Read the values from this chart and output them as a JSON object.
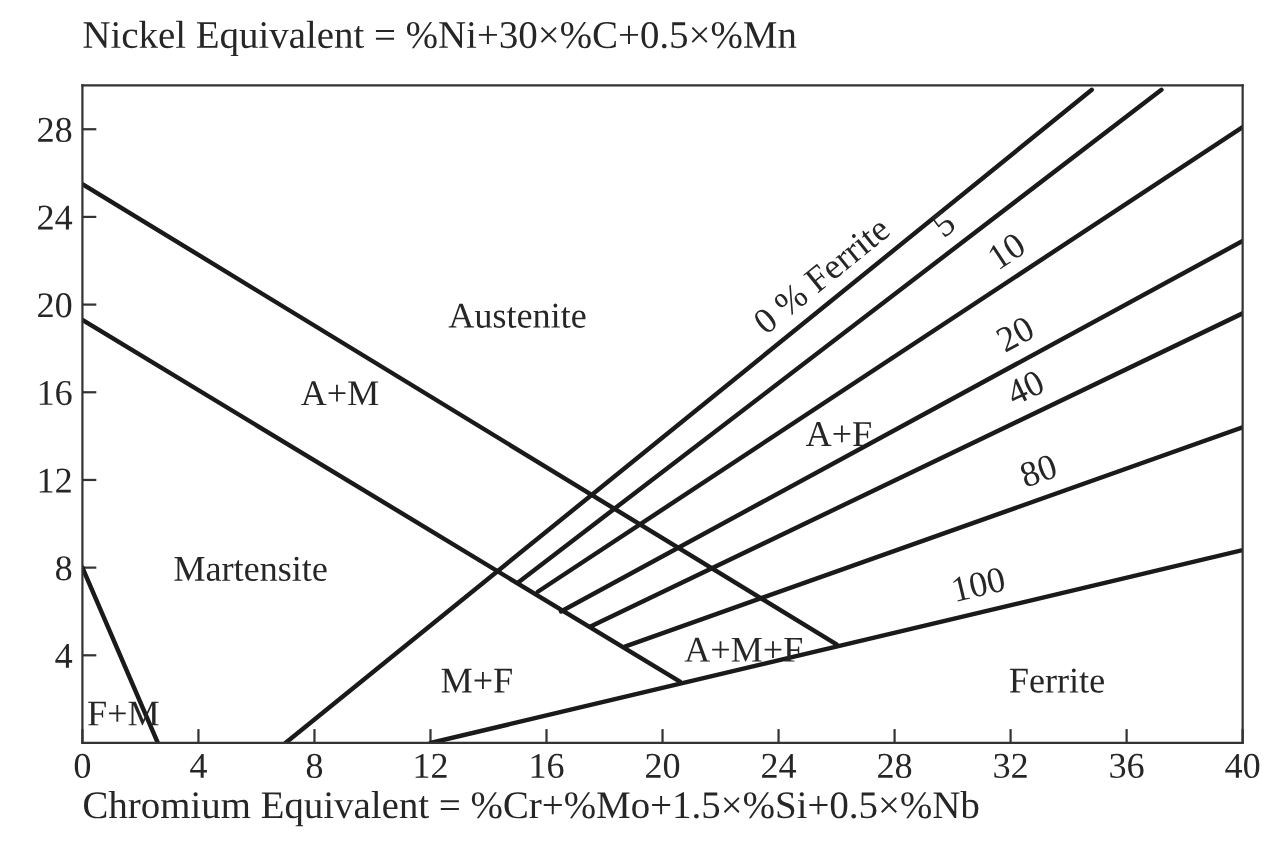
{
  "chart_data": {
    "type": "line",
    "xlabel": "Chromium Equivalent = %Cr+%Mo+1.5×%Si+0.5×%Nb",
    "ylabel": "Nickel Equivalent = %Ni+30×%C+0.5×%Mn",
    "xlim": [
      0,
      40
    ],
    "ylim": [
      0,
      30
    ],
    "xticks": [
      0,
      4,
      8,
      12,
      16,
      20,
      24,
      28,
      32,
      36,
      40
    ],
    "yticks": [
      4,
      8,
      12,
      16,
      20,
      24,
      28
    ],
    "grid": false,
    "legend": false,
    "marker": "none",
    "line_style": "solid",
    "series": [
      {
        "color": "#1a1a1a",
        "x": [
          0,
          26.0
        ],
        "values": [
          25.5,
          4.5
        ]
      },
      {
        "color": "#1a1a1a",
        "x": [
          0,
          20.6
        ],
        "values": [
          19.3,
          2.8
        ]
      },
      {
        "color": "#1a1a1a",
        "x": [
          0,
          2.6
        ],
        "values": [
          8.0,
          0
        ]
      },
      {
        "name": "0 % Ferrite",
        "color": "#1a1a1a",
        "x": [
          7.0,
          34.8
        ],
        "values": [
          0,
          29.8
        ]
      },
      {
        "name": "5",
        "color": "#1a1a1a",
        "x": [
          15.0,
          37.2
        ],
        "values": [
          7.3,
          29.8
        ]
      },
      {
        "name": "10",
        "color": "#1a1a1a",
        "x": [
          15.7,
          40
        ],
        "values": [
          6.9,
          28.1
        ]
      },
      {
        "name": "20",
        "color": "#1a1a1a",
        "x": [
          16.5,
          40
        ],
        "values": [
          6.0,
          22.9
        ]
      },
      {
        "name": "40",
        "color": "#1a1a1a",
        "x": [
          17.5,
          40
        ],
        "values": [
          5.3,
          19.6
        ]
      },
      {
        "name": "80",
        "color": "#1a1a1a",
        "x": [
          18.7,
          40
        ],
        "values": [
          4.4,
          14.4
        ]
      },
      {
        "name": "100",
        "color": "#1a1a1a",
        "x": [
          12.0,
          40
        ],
        "values": [
          0,
          8.8
        ]
      }
    ],
    "annotations": [
      "Austenite",
      "A+M",
      "Martensite",
      "F+M",
      "M+F",
      "A+M+F",
      "A+F",
      "Ferrite"
    ]
  }
}
